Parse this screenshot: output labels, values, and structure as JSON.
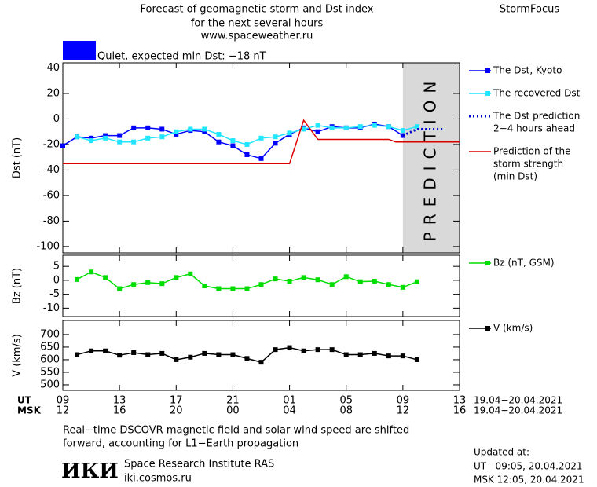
{
  "header": {
    "title": [
      "Forecast of geomagnetic storm and Dst index",
      "for the next several hours",
      "www.spaceweather.ru"
    ],
    "brand": "StormFocus",
    "status": "Quiet, expected min Dst: −18 nT",
    "status_color": "#0000ff"
  },
  "chart_data": [
    {
      "type": "line",
      "ylabel": "Dst (nT)",
      "xlim": [
        0,
        28
      ],
      "ylim": [
        -105,
        44
      ],
      "yticks": [
        40,
        20,
        0,
        -20,
        -40,
        -60,
        -80,
        -100
      ],
      "prediction_region": [
        24,
        28
      ],
      "prediction_label": "PREDICTION",
      "series": [
        {
          "name": [
            "The Dst, Kyoto"
          ],
          "color": "#0000ff",
          "marker": "square",
          "dash": false,
          "x": [
            0,
            1,
            2,
            3,
            4,
            5,
            6,
            7,
            8,
            9,
            10,
            11,
            12,
            13,
            14,
            15,
            16,
            17,
            18,
            19,
            20,
            21,
            22,
            23,
            24
          ],
          "values": [
            -21,
            -14,
            -15,
            -13,
            -13,
            -7,
            -7,
            -8,
            -12,
            -9,
            -10,
            -18,
            -21,
            -28,
            -31,
            -19,
            -12,
            -7,
            -10,
            -6,
            -7,
            -7,
            -4,
            -6,
            -13
          ]
        },
        {
          "name": [
            "The recovered Dst"
          ],
          "color": "#22e6ff",
          "marker": "square",
          "dash": false,
          "x": [
            1,
            2,
            3,
            4,
            5,
            6,
            7,
            8,
            9,
            10,
            11,
            12,
            13,
            14,
            15,
            16,
            17,
            18,
            19,
            20,
            21,
            22,
            23,
            24,
            25
          ],
          "values": [
            -14,
            -17,
            -15,
            -18,
            -18,
            -15,
            -14,
            -10,
            -8,
            -8,
            -12,
            -17,
            -20,
            -15,
            -14,
            -11,
            -8,
            -5,
            -7,
            -7,
            -6,
            -5,
            -6,
            -9,
            -6
          ]
        },
        {
          "name": [
            "The Dst prediction",
            "2−4 hours ahead"
          ],
          "color": "#0000cc",
          "marker": "none",
          "dash": true,
          "x": [
            24,
            25,
            26,
            27
          ],
          "values": [
            -13,
            -8,
            -8,
            -8
          ]
        },
        {
          "name": [
            "Prediction of the",
            "storm strength",
            "(min Dst)"
          ],
          "color": "#dd0000",
          "marker": "none",
          "dash": false,
          "x": [
            0,
            16,
            17,
            18,
            23,
            23.5,
            28
          ],
          "values": [
            -35,
            -35,
            -1,
            -16,
            -16,
            -18,
            -18
          ]
        }
      ]
    },
    {
      "type": "line",
      "ylabel": "Bz (nT)",
      "xlim": [
        0,
        28
      ],
      "ylim": [
        -13,
        9
      ],
      "yticks": [
        5,
        0,
        -5,
        -10
      ],
      "series": [
        {
          "name": [
            "Bz (nT, GSM)"
          ],
          "color": "#00dd00",
          "marker": "square",
          "dash": false,
          "x": [
            1,
            2,
            3,
            4,
            5,
            6,
            7,
            8,
            9,
            10,
            11,
            12,
            13,
            14,
            15,
            16,
            17,
            18,
            19,
            20,
            21,
            22,
            23,
            24,
            25
          ],
          "values": [
            0.3,
            3,
            1,
            -3,
            -1.5,
            -0.8,
            -1.2,
            1,
            2.3,
            -2,
            -3,
            -3,
            -3,
            -1.5,
            0.5,
            -0.3,
            1,
            0.2,
            -1.5,
            1.3,
            -0.5,
            -0.3,
            -1.5,
            -2.5,
            -0.5
          ]
        }
      ]
    },
    {
      "type": "line",
      "ylabel": "V (km/s)",
      "xlim": [
        0,
        28
      ],
      "ylim": [
        478,
        756
      ],
      "yticks": [
        700,
        650,
        600,
        550,
        500
      ],
      "series": [
        {
          "name": [
            "V (km/s)"
          ],
          "color": "#000000",
          "marker": "square",
          "dash": false,
          "x": [
            1,
            2,
            3,
            4,
            5,
            6,
            7,
            8,
            9,
            10,
            11,
            12,
            13,
            14,
            15,
            16,
            17,
            18,
            19,
            20,
            21,
            22,
            23,
            24,
            25
          ],
          "values": [
            620,
            635,
            635,
            618,
            628,
            620,
            625,
            600,
            610,
            625,
            620,
            620,
            605,
            590,
            640,
            648,
            635,
            640,
            640,
            620,
            620,
            625,
            615,
            615,
            600
          ]
        }
      ],
      "xticks": [
        {
          "value": 0,
          "label": "09"
        },
        {
          "value": 4,
          "label": "13"
        },
        {
          "value": 8,
          "label": "17"
        },
        {
          "value": 12,
          "label": "21"
        },
        {
          "value": 16,
          "label": "01"
        },
        {
          "value": 20,
          "label": "05"
        },
        {
          "value": 24,
          "label": "09"
        },
        {
          "value": 28,
          "label": "13"
        }
      ],
      "x2ticks": [
        {
          "value": 0,
          "label": "12"
        },
        {
          "value": 4,
          "label": "16"
        },
        {
          "value": 8,
          "label": "20"
        },
        {
          "value": 12,
          "label": "00"
        },
        {
          "value": 16,
          "label": "04"
        },
        {
          "value": 20,
          "label": "08"
        },
        {
          "value": 24,
          "label": "12"
        },
        {
          "value": 28,
          "label": "16"
        }
      ],
      "xlabel": "UT",
      "x2label": "MSK",
      "xdate": "19.04−20.04.2021",
      "x2date": "19.04−20.04.2021"
    }
  ],
  "footer": {
    "note": [
      "Real−time DSCOVR magnetic field and solar wind speed are shifted",
      "forward, accounting for L1−Earth propagation"
    ],
    "logo": "ИКИ",
    "institute": "Space Research Institute RAS",
    "site": "iki.cosmos.ru",
    "updated_title": "Updated at:",
    "updated_ut": "UT   09:05, 20.04.2021",
    "updated_msk": "MSK 12:05, 20.04.2021"
  }
}
